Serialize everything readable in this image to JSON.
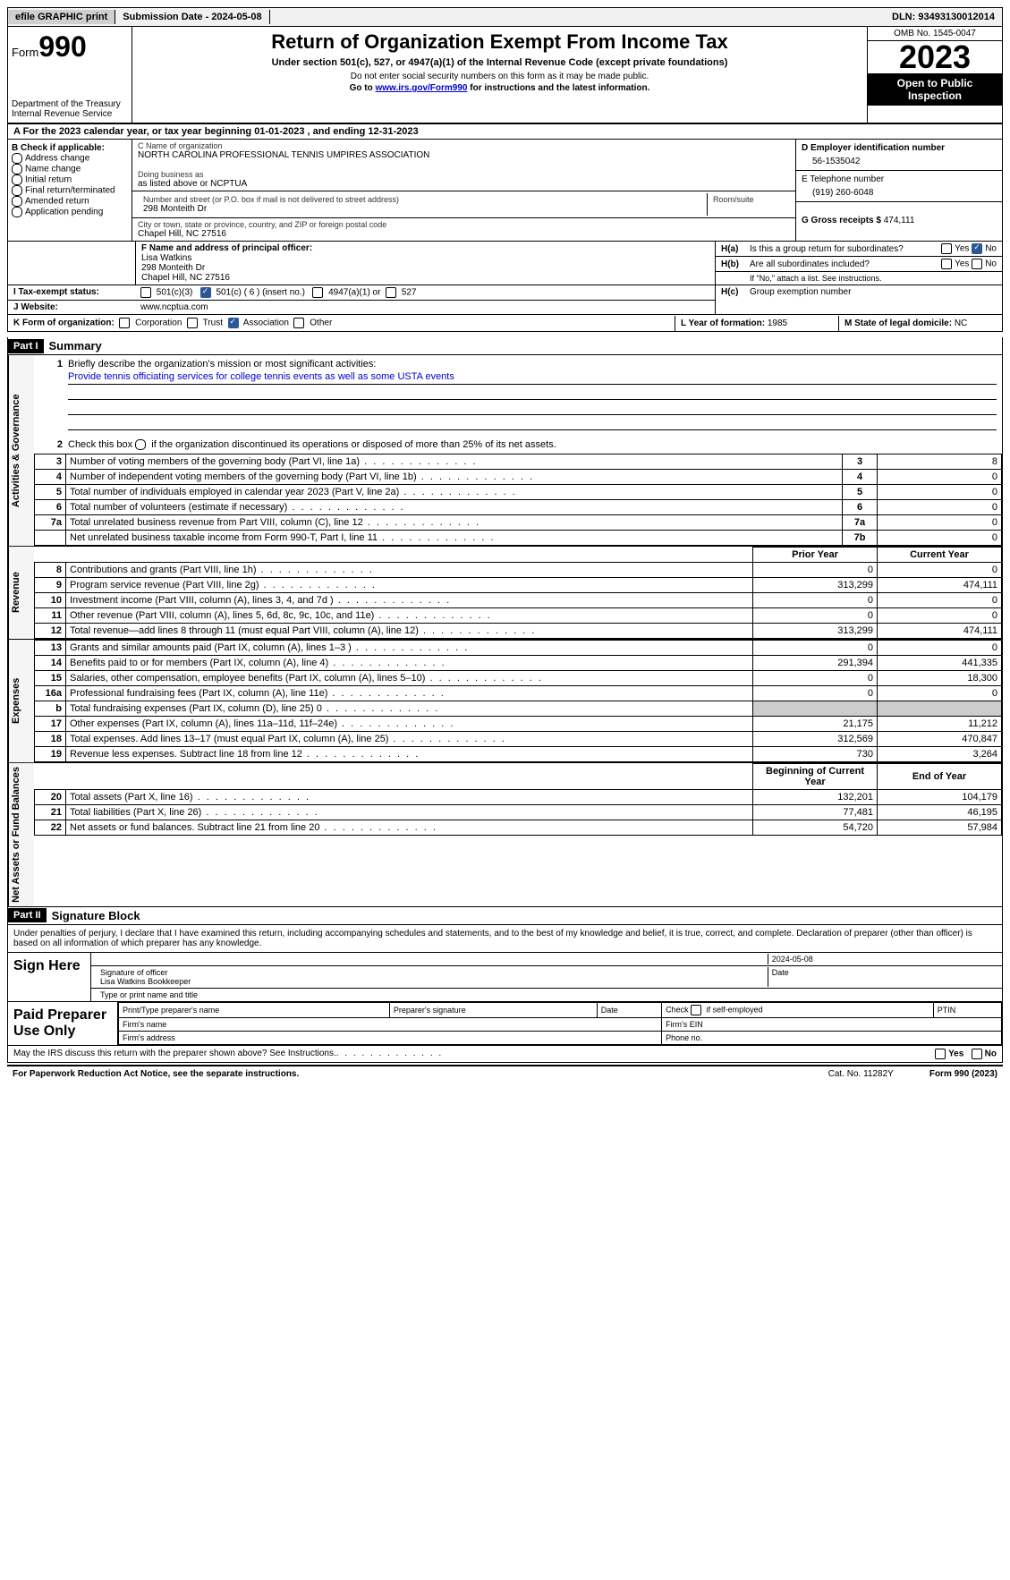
{
  "topbar": {
    "efile": "efile GRAPHIC print",
    "submission": "Submission Date - 2024-05-08",
    "dln": "DLN: 93493130012014"
  },
  "header": {
    "form_label": "Form",
    "form_num": "990",
    "dept": "Department of the Treasury Internal Revenue Service",
    "title": "Return of Organization Exempt From Income Tax",
    "sub": "Under section 501(c), 527, or 4947(a)(1) of the Internal Revenue Code (except private foundations)",
    "small1": "Do not enter social security numbers on this form as it may be made public.",
    "small2_pre": "Go to ",
    "small2_link": "www.irs.gov/Form990",
    "small2_post": " for instructions and the latest information.",
    "omb": "OMB No. 1545-0047",
    "year": "2023",
    "inspect": "Open to Public Inspection"
  },
  "row_a": "A For the 2023 calendar year, or tax year beginning 01-01-2023   , and ending 12-31-2023",
  "col_b": {
    "head": "B Check if applicable:",
    "items": [
      "Address change",
      "Name change",
      "Initial return",
      "Final return/terminated",
      "Amended return",
      "Application pending"
    ]
  },
  "col_c": {
    "name_lbl": "C Name of organization",
    "name": "NORTH CAROLINA PROFESSIONAL TENNIS UMPIRES ASSOCIATION",
    "dba_lbl": "Doing business as",
    "dba": "as listed above or NCPTUA",
    "street_lbl": "Number and street (or P.O. box if mail is not delivered to street address)",
    "street": "298 Monteith Dr",
    "room_lbl": "Room/suite",
    "city_lbl": "City or town, state or province, country, and ZIP or foreign postal code",
    "city": "Chapel Hill, NC  27516",
    "officer_lbl": "F  Name and address of principal officer:",
    "officer_name": "Lisa Watkins",
    "officer_street": "298 Monteith Dr",
    "officer_city": "Chapel Hill, NC  27516"
  },
  "col_d": {
    "ein_lbl": "D Employer identification number",
    "ein": "56-1535042",
    "tel_lbl": "E Telephone number",
    "tel": "(919) 260-6048",
    "gross_lbl": "G Gross receipts $ ",
    "gross": "474,111"
  },
  "h": {
    "a_lbl": "H(a)",
    "a_text": "Is this a group return for subordinates?",
    "b_lbl": "H(b)",
    "b_text": "Are all subordinates included?",
    "b_note": "If \"No,\" attach a list. See instructions.",
    "c_lbl": "H(c)",
    "c_text": "Group exemption number",
    "yes": "Yes",
    "no": "No"
  },
  "tax_exempt": {
    "i_lbl": "I   Tax-exempt status:",
    "opt1": "501(c)(3)",
    "opt2": "501(c) ( 6 ) (insert no.)",
    "opt3": "4947(a)(1) or",
    "opt4": "527"
  },
  "j": {
    "lbl": "J   Website:",
    "val": "www.ncptua.com"
  },
  "k": {
    "lbl": "K Form of organization:",
    "opts": [
      "Corporation",
      "Trust",
      "Association",
      "Other"
    ],
    "checked": 2
  },
  "l": {
    "lbl": "L Year of formation: ",
    "val": "1985"
  },
  "m": {
    "lbl": "M State of legal domicile: ",
    "val": "NC"
  },
  "part1": {
    "bar": "Part I",
    "title": "Summary",
    "mission_lbl": "Briefly describe the organization's mission or most significant activities:",
    "mission": "Provide tennis officiating services for college tennis events as well as some USTA events",
    "line2": "Check this box      if the organization discontinued its operations or disposed of more than 25% of its net assets."
  },
  "side_labels": {
    "gov": "Activities & Governance",
    "rev": "Revenue",
    "exp": "Expenses",
    "net": "Net Assets or Fund Balances"
  },
  "col_heads": {
    "prior": "Prior Year",
    "current": "Current Year",
    "begin": "Beginning of Current Year",
    "end": "End of Year"
  },
  "gov_lines": [
    {
      "n": "3",
      "desc": "Number of voting members of the governing body (Part VI, line 1a)",
      "ref": "3",
      "val": "8"
    },
    {
      "n": "4",
      "desc": "Number of independent voting members of the governing body (Part VI, line 1b)",
      "ref": "4",
      "val": "0"
    },
    {
      "n": "5",
      "desc": "Total number of individuals employed in calendar year 2023 (Part V, line 2a)",
      "ref": "5",
      "val": "0"
    },
    {
      "n": "6",
      "desc": "Total number of volunteers (estimate if necessary)",
      "ref": "6",
      "val": "0"
    },
    {
      "n": "7a",
      "desc": "Total unrelated business revenue from Part VIII, column (C), line 12",
      "ref": "7a",
      "val": "0"
    },
    {
      "n": "",
      "desc": "Net unrelated business taxable income from Form 990-T, Part I, line 11",
      "ref": "7b",
      "val": "0"
    }
  ],
  "rev_lines": [
    {
      "n": "8",
      "desc": "Contributions and grants (Part VIII, line 1h)",
      "p": "0",
      "c": "0"
    },
    {
      "n": "9",
      "desc": "Program service revenue (Part VIII, line 2g)",
      "p": "313,299",
      "c": "474,111"
    },
    {
      "n": "10",
      "desc": "Investment income (Part VIII, column (A), lines 3, 4, and 7d )",
      "p": "0",
      "c": "0"
    },
    {
      "n": "11",
      "desc": "Other revenue (Part VIII, column (A), lines 5, 6d, 8c, 9c, 10c, and 11e)",
      "p": "0",
      "c": "0"
    },
    {
      "n": "12",
      "desc": "Total revenue—add lines 8 through 11 (must equal Part VIII, column (A), line 12)",
      "p": "313,299",
      "c": "474,111"
    }
  ],
  "exp_lines": [
    {
      "n": "13",
      "desc": "Grants and similar amounts paid (Part IX, column (A), lines 1–3 )",
      "p": "0",
      "c": "0"
    },
    {
      "n": "14",
      "desc": "Benefits paid to or for members (Part IX, column (A), line 4)",
      "p": "291,394",
      "c": "441,335"
    },
    {
      "n": "15",
      "desc": "Salaries, other compensation, employee benefits (Part IX, column (A), lines 5–10)",
      "p": "0",
      "c": "18,300"
    },
    {
      "n": "16a",
      "desc": "Professional fundraising fees (Part IX, column (A), line 11e)",
      "p": "0",
      "c": "0"
    },
    {
      "n": "b",
      "desc": "Total fundraising expenses (Part IX, column (D), line 25) 0",
      "p": "",
      "c": "",
      "shade": true
    },
    {
      "n": "17",
      "desc": "Other expenses (Part IX, column (A), lines 11a–11d, 11f–24e)",
      "p": "21,175",
      "c": "11,212"
    },
    {
      "n": "18",
      "desc": "Total expenses. Add lines 13–17 (must equal Part IX, column (A), line 25)",
      "p": "312,569",
      "c": "470,847"
    },
    {
      "n": "19",
      "desc": "Revenue less expenses. Subtract line 18 from line 12",
      "p": "730",
      "c": "3,264"
    }
  ],
  "net_lines": [
    {
      "n": "20",
      "desc": "Total assets (Part X, line 16)",
      "p": "132,201",
      "c": "104,179"
    },
    {
      "n": "21",
      "desc": "Total liabilities (Part X, line 26)",
      "p": "77,481",
      "c": "46,195"
    },
    {
      "n": "22",
      "desc": "Net assets or fund balances. Subtract line 21 from line 20",
      "p": "54,720",
      "c": "57,984"
    }
  ],
  "part2": {
    "bar": "Part II",
    "title": "Signature Block",
    "text": "Under penalties of perjury, I declare that I have examined this return, including accompanying schedules and statements, and to the best of my knowledge and belief, it is true, correct, and complete. Declaration of preparer (other than officer) is based on all information of which preparer has any knowledge."
  },
  "sign": {
    "here": "Sign Here",
    "sig_officer": "Signature of officer",
    "date": "Date",
    "date_val": "2024-05-08",
    "name": "Lisa Watkins  Bookkeeper",
    "type_name": "Type or print name and title"
  },
  "prep": {
    "label": "Paid Preparer Use Only",
    "h1": "Print/Type preparer's name",
    "h2": "Preparer's signature",
    "h3": "Date",
    "h4_pre": "Check",
    "h4_post": "if self-employed",
    "h5": "PTIN",
    "firm_name": "Firm's name",
    "firm_ein": "Firm's EIN",
    "firm_addr": "Firm's address",
    "phone": "Phone no."
  },
  "discuss": {
    "text": "May the IRS discuss this return with the preparer shown above? See Instructions.",
    "yes": "Yes",
    "no": "No"
  },
  "footer": {
    "pra": "For Paperwork Reduction Act Notice, see the separate instructions.",
    "cat": "Cat. No. 11282Y",
    "form": "Form 990 (2023)"
  }
}
